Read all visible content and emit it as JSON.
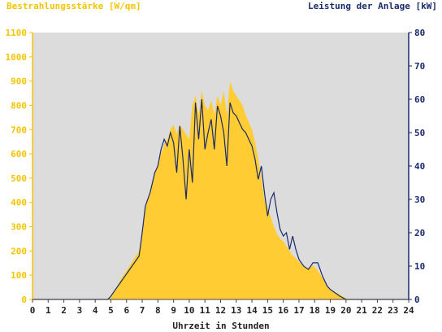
{
  "chart_data": {
    "type": "area",
    "title": "",
    "ylabel_left": "Bestrahlungsstärke [W/qm]",
    "ylabel_right": "Leistung der Anlage [kW]",
    "xlabel": "Uhrzeit in Stunden",
    "xlim": [
      0,
      24
    ],
    "ylim_left": [
      0,
      1100
    ],
    "ylim_right": [
      0,
      80
    ],
    "x_ticks": [
      "0",
      "1",
      "2",
      "3",
      "4",
      "5",
      "6",
      "7",
      "8",
      "9",
      "10",
      "11",
      "12",
      "13",
      "14",
      "15",
      "16",
      "17",
      "18",
      "19",
      "20",
      "21",
      "22",
      "23",
      "24"
    ],
    "y_left_ticks": [
      "0",
      "100",
      "200",
      "300",
      "400",
      "500",
      "600",
      "700",
      "800",
      "900",
      "1000",
      "1100"
    ],
    "y_right_ticks": [
      "0",
      "10",
      "20",
      "30",
      "40",
      "50",
      "60",
      "70",
      "80"
    ],
    "grid": false,
    "colors": {
      "plot_background": "#dcdcdc",
      "irradiance_fill": "#ffcc33",
      "power_line": "#1a2a6c",
      "left_axis": "#f5c400",
      "right_axis": "#1a2a6c"
    },
    "series": [
      {
        "name": "Bestrahlungsstärke",
        "axis": "left",
        "style": "area",
        "points": [
          [
            0,
            0
          ],
          [
            4.8,
            0
          ],
          [
            5.0,
            10
          ],
          [
            5.3,
            40
          ],
          [
            5.6,
            80
          ],
          [
            5.9,
            110
          ],
          [
            6.2,
            140
          ],
          [
            6.5,
            170
          ],
          [
            6.8,
            200
          ],
          [
            7.0,
            280
          ],
          [
            7.2,
            380
          ],
          [
            7.5,
            450
          ],
          [
            7.8,
            520
          ],
          [
            8.0,
            560
          ],
          [
            8.2,
            600
          ],
          [
            8.4,
            640
          ],
          [
            8.6,
            660
          ],
          [
            8.8,
            700
          ],
          [
            9.0,
            720
          ],
          [
            9.2,
            680
          ],
          [
            9.4,
            720
          ],
          [
            9.6,
            700
          ],
          [
            9.8,
            680
          ],
          [
            10.0,
            660
          ],
          [
            10.2,
            800
          ],
          [
            10.4,
            840
          ],
          [
            10.6,
            760
          ],
          [
            10.8,
            860
          ],
          [
            11.0,
            800
          ],
          [
            11.2,
            780
          ],
          [
            11.4,
            820
          ],
          [
            11.6,
            760
          ],
          [
            11.8,
            840
          ],
          [
            12.0,
            800
          ],
          [
            12.2,
            860
          ],
          [
            12.4,
            760
          ],
          [
            12.6,
            900
          ],
          [
            12.8,
            860
          ],
          [
            13.0,
            840
          ],
          [
            13.2,
            820
          ],
          [
            13.4,
            800
          ],
          [
            13.6,
            760
          ],
          [
            13.8,
            730
          ],
          [
            14.0,
            700
          ],
          [
            14.2,
            650
          ],
          [
            14.4,
            580
          ],
          [
            14.6,
            500
          ],
          [
            14.8,
            410
          ],
          [
            15.0,
            380
          ],
          [
            15.2,
            340
          ],
          [
            15.4,
            300
          ],
          [
            15.6,
            270
          ],
          [
            15.8,
            250
          ],
          [
            16.0,
            240
          ],
          [
            16.2,
            220
          ],
          [
            16.4,
            200
          ],
          [
            16.6,
            180
          ],
          [
            16.8,
            170
          ],
          [
            17.0,
            155
          ],
          [
            17.3,
            135
          ],
          [
            17.6,
            130
          ],
          [
            17.9,
            140
          ],
          [
            18.2,
            120
          ],
          [
            18.5,
            90
          ],
          [
            18.8,
            60
          ],
          [
            19.0,
            40
          ],
          [
            19.3,
            30
          ],
          [
            19.6,
            20
          ],
          [
            20.0,
            5
          ],
          [
            20.2,
            0
          ],
          [
            24,
            0
          ]
        ]
      },
      {
        "name": "Leistung der Anlage",
        "axis": "right",
        "style": "line",
        "points": [
          [
            0,
            0
          ],
          [
            4.8,
            0
          ],
          [
            5.0,
            1
          ],
          [
            5.3,
            3
          ],
          [
            5.6,
            5
          ],
          [
            5.9,
            7
          ],
          [
            6.2,
            9
          ],
          [
            6.5,
            11
          ],
          [
            6.8,
            13
          ],
          [
            7.0,
            20
          ],
          [
            7.2,
            28
          ],
          [
            7.5,
            32
          ],
          [
            7.8,
            38
          ],
          [
            8.0,
            40
          ],
          [
            8.2,
            45
          ],
          [
            8.4,
            48
          ],
          [
            8.6,
            46
          ],
          [
            8.8,
            50
          ],
          [
            9.0,
            47
          ],
          [
            9.2,
            38
          ],
          [
            9.4,
            52
          ],
          [
            9.6,
            42
          ],
          [
            9.8,
            30
          ],
          [
            10.0,
            45
          ],
          [
            10.2,
            35
          ],
          [
            10.4,
            59
          ],
          [
            10.6,
            48
          ],
          [
            10.8,
            60
          ],
          [
            11.0,
            45
          ],
          [
            11.2,
            50
          ],
          [
            11.4,
            54
          ],
          [
            11.6,
            45
          ],
          [
            11.8,
            58
          ],
          [
            12.0,
            55
          ],
          [
            12.2,
            50
          ],
          [
            12.4,
            40
          ],
          [
            12.6,
            59
          ],
          [
            12.8,
            56
          ],
          [
            13.0,
            55
          ],
          [
            13.2,
            53
          ],
          [
            13.4,
            51
          ],
          [
            13.6,
            50
          ],
          [
            13.8,
            48
          ],
          [
            14.0,
            46
          ],
          [
            14.2,
            42
          ],
          [
            14.4,
            36
          ],
          [
            14.6,
            40
          ],
          [
            14.8,
            32
          ],
          [
            15.0,
            25
          ],
          [
            15.2,
            30
          ],
          [
            15.4,
            32
          ],
          [
            15.6,
            26
          ],
          [
            15.8,
            21
          ],
          [
            16.0,
            19
          ],
          [
            16.2,
            20
          ],
          [
            16.4,
            15
          ],
          [
            16.6,
            19
          ],
          [
            16.8,
            15
          ],
          [
            17.0,
            12
          ],
          [
            17.3,
            10
          ],
          [
            17.6,
            9
          ],
          [
            17.9,
            11
          ],
          [
            18.2,
            11
          ],
          [
            18.5,
            7
          ],
          [
            18.8,
            4
          ],
          [
            19.0,
            3
          ],
          [
            19.3,
            2
          ],
          [
            19.6,
            1
          ],
          [
            20.0,
            0
          ],
          [
            24,
            0
          ]
        ]
      }
    ]
  }
}
